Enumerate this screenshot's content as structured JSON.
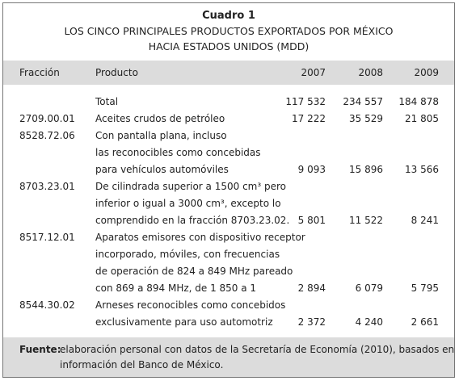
{
  "header": {
    "title": "Cuadro 1",
    "subtitle": [
      "LOS CINCO PRINCIPALES PRODUCTOS EXPORTADOS POR MÉXICO",
      "HACIA ESTADOS UNIDOS (MDD)"
    ]
  },
  "table": {
    "columns": [
      "Fracción",
      "Producto",
      "2007",
      "2008",
      "2009"
    ],
    "rows": [
      {
        "producto": [
          "Total"
        ],
        "values": [
          "117 532",
          "234 557",
          "184 878"
        ]
      },
      {
        "fraccion": "2709.00.01",
        "producto": [
          "Aceites crudos de petróleo"
        ],
        "values": [
          "17 222",
          "35 529",
          "21 805"
        ]
      },
      {
        "fraccion": "8528.72.06",
        "producto": [
          "Con pantalla plana, incluso",
          "las reconocibles como concebidas",
          "para vehículos automóviles"
        ],
        "values": [
          "9 093",
          "15 896",
          "13 566"
        ]
      },
      {
        "fraccion": "8703.23.01",
        "producto": [
          "De cilindrada superior a 1500 cm³ pero",
          "inferior o igual a 3000 cm³, excepto lo",
          "comprendido en la fracción 8703.23.02."
        ],
        "values": [
          "5 801",
          "11 522",
          "8 241"
        ]
      },
      {
        "fraccion": "8517.12.01",
        "producto": [
          "Aparatos emisores con dispositivo receptor",
          "incorporado, móviles, con frecuencias",
          "de operación de 824 a 849 MHz pareado",
          "con 869 a 894 MHz, de 1 850 a 1"
        ],
        "values": [
          "2 894",
          "6 079",
          "5 795"
        ]
      },
      {
        "fraccion": "8544.30.02",
        "producto": [
          "Arneses reconocibles como concebidos",
          "exclusivamente para uso automotriz"
        ],
        "values": [
          "2 372",
          "4 240",
          "2 661"
        ]
      }
    ]
  },
  "footer": {
    "label": "Fuente:",
    "lines": [
      "elaboración personal con datos de la Secretaría de Economía (2010), basados en",
      "información del Banco de México."
    ]
  }
}
